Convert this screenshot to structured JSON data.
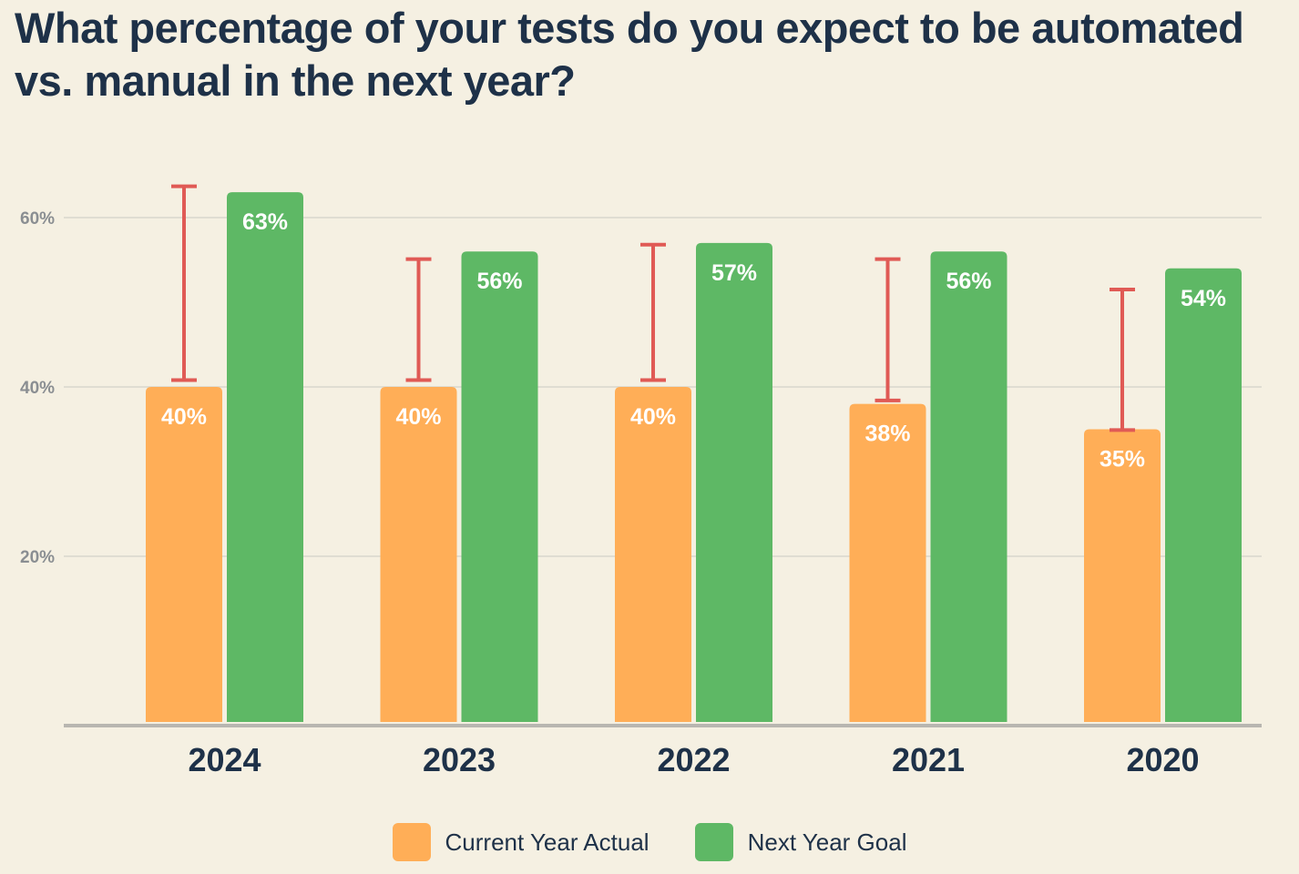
{
  "title": "What percentage of your tests do you expect to be automated vs. manual in the next year?",
  "colors": {
    "current": "#ffae57",
    "goal": "#5eb865",
    "errorbar": "#e05a55",
    "grid": "#dfddd2",
    "axis": "#b8b6b0",
    "tick": "#8a8e92",
    "category": "#1e3148",
    "label": "#ffffff"
  },
  "legend": {
    "current_label": "Current Year Actual",
    "goal_label": "Next Year Goal"
  },
  "chart_data": {
    "type": "bar",
    "title": "What percentage of your tests do you expect to be automated vs. manual in the next year?",
    "categories": [
      "2024",
      "2023",
      "2022",
      "2021",
      "2020"
    ],
    "series": [
      {
        "name": "Current Year Actual",
        "values": [
          40,
          40,
          40,
          38,
          35
        ],
        "labels": [
          "40%",
          "40%",
          "40%",
          "38%",
          "35%"
        ]
      },
      {
        "name": "Next Year Goal",
        "values": [
          63,
          56,
          57,
          56,
          54
        ],
        "labels": [
          "63%",
          "56%",
          "57%",
          "56%",
          "54%"
        ]
      }
    ],
    "error_bars": {
      "series": "Current Year Actual",
      "low": [
        40.8,
        40.8,
        40.8,
        38.4,
        34.9
      ],
      "high": [
        63.7,
        55.1,
        56.8,
        55.1,
        51.5
      ]
    },
    "y_ticks": [
      20,
      40,
      60
    ],
    "y_tick_labels": [
      "20%",
      "40%",
      "60%"
    ],
    "ylim": [
      0,
      70
    ],
    "grid": true,
    "legend_position": "bottom-center"
  }
}
